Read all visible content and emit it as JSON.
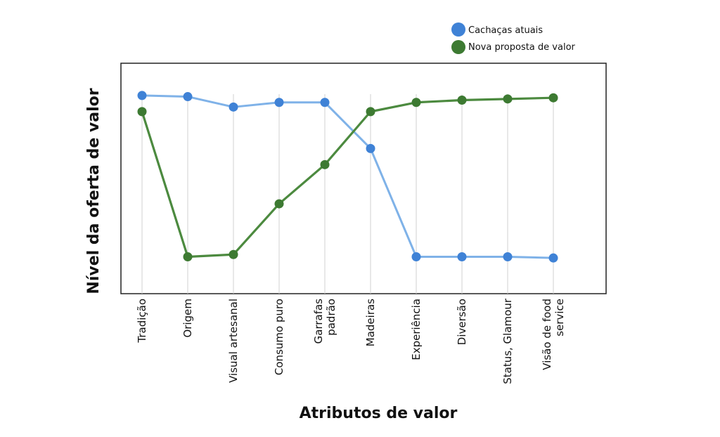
{
  "chart_data": {
    "type": "line",
    "title": "",
    "xlabel": "Atributos de valor",
    "ylabel": "Nível da oferta de valor",
    "categories": [
      [
        "Tradição"
      ],
      [
        "Origem"
      ],
      [
        "Visual artesanal"
      ],
      [
        "Consumo puro"
      ],
      [
        "Garrafas",
        "padrão"
      ],
      [
        "Madeiras"
      ],
      [
        "Experiência"
      ],
      [
        "Diversão"
      ],
      [
        "Status, Glamour"
      ],
      [
        "Visão de food",
        "service"
      ]
    ],
    "series": [
      {
        "name": "Cachaças atuais",
        "color": "#7fb2e8",
        "marker_color": "#3f82d6",
        "values": [
          8.6,
          8.55,
          8.1,
          8.3,
          8.3,
          6.3,
          1.6,
          1.6,
          1.6,
          1.55
        ]
      },
      {
        "name": "Nova proposta de valor",
        "color": "#4c8a3f",
        "marker_color": "#3d7a32",
        "values": [
          7.9,
          1.6,
          1.7,
          3.9,
          5.6,
          7.9,
          8.3,
          8.4,
          8.45,
          8.5
        ]
      }
    ],
    "ylim": [
      0,
      10
    ],
    "grid": "vertical",
    "legend": "top-right"
  }
}
